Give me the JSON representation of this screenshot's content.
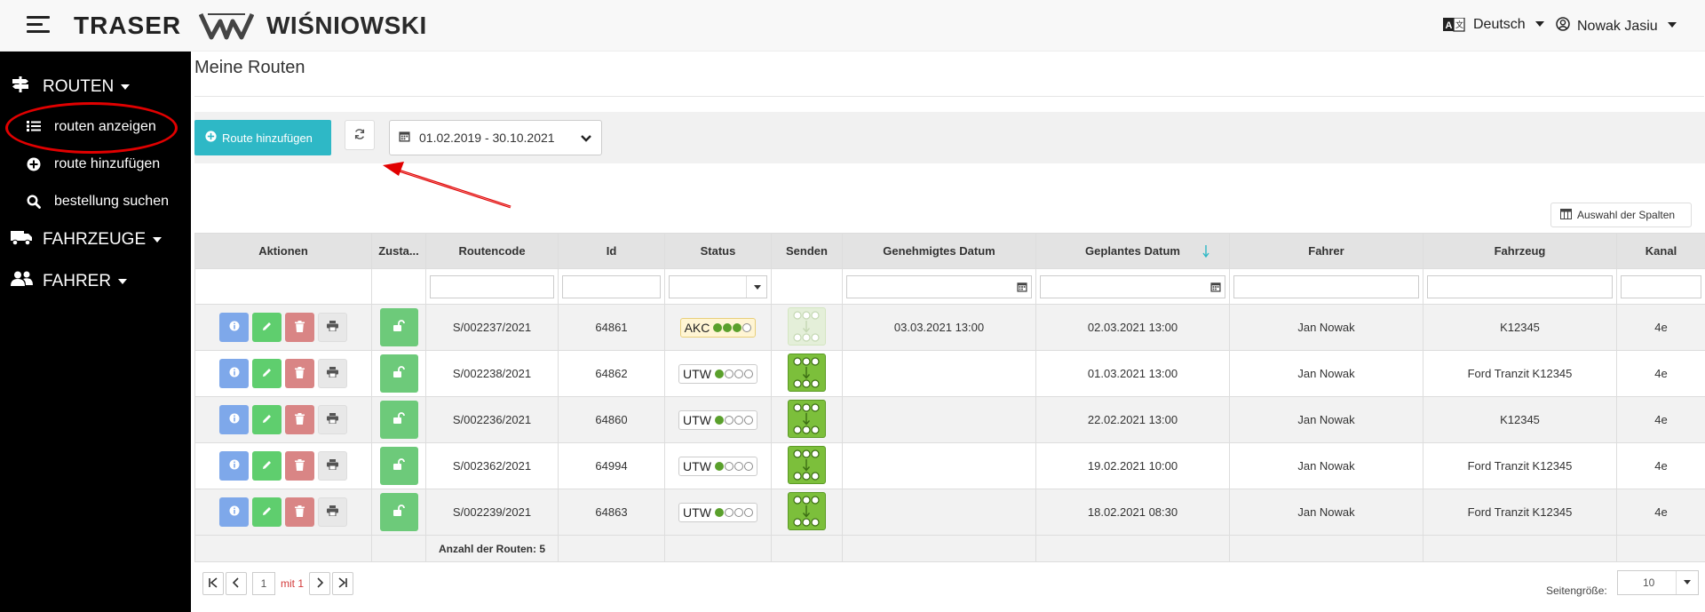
{
  "header": {
    "brand_traser": "TRASER",
    "brand_wisniowski": "WIŚNIOWSKI",
    "language": "Deutsch",
    "user": "Nowak Jasiu"
  },
  "sidebar": {
    "groups": [
      {
        "label": "ROUTEN",
        "icon": "signpost-icon"
      },
      {
        "label": "FAHRZEUGE",
        "icon": "truck-icon"
      },
      {
        "label": "FAHRER",
        "icon": "users-icon"
      }
    ],
    "items": [
      {
        "label": "routen anzeigen",
        "icon": "list-icon"
      },
      {
        "label": "route hinzufügen",
        "icon": "plus-circle-icon"
      },
      {
        "label": "bestellung suchen",
        "icon": "search-icon"
      }
    ]
  },
  "page": {
    "title": "Meine Routen",
    "add_button": "Route hinzufügen",
    "date_range": "01.02.2019 - 30.10.2021",
    "columns_button": "Auswahl der Spalten"
  },
  "table": {
    "headers": [
      "Aktionen",
      "Zusta...",
      "Routencode",
      "Id",
      "Status",
      "Senden",
      "Genehmigtes Datum",
      "Geplantes Datum",
      "Fahrer",
      "Fahrzeug",
      "Kanal"
    ],
    "rows": [
      {
        "code": "S/002237/2021",
        "id": "64861",
        "status": "AKC",
        "status_level": 3,
        "sent": false,
        "approved": "03.03.2021 13:00",
        "planned": "02.03.2021 13:00",
        "driver": "Jan Nowak",
        "vehicle": "K12345",
        "channel": "4e"
      },
      {
        "code": "S/002238/2021",
        "id": "64862",
        "status": "UTW",
        "status_level": 1,
        "sent": true,
        "approved": "",
        "planned": "01.03.2021 13:00",
        "driver": "Jan Nowak",
        "vehicle": "Ford Tranzit K12345",
        "channel": "4e"
      },
      {
        "code": "S/002236/2021",
        "id": "64860",
        "status": "UTW",
        "status_level": 1,
        "sent": true,
        "approved": "",
        "planned": "22.02.2021 13:00",
        "driver": "Jan Nowak",
        "vehicle": "K12345",
        "channel": "4e"
      },
      {
        "code": "S/002362/2021",
        "id": "64994",
        "status": "UTW",
        "status_level": 1,
        "sent": true,
        "approved": "",
        "planned": "19.02.2021 10:00",
        "driver": "Jan Nowak",
        "vehicle": "Ford Tranzit K12345",
        "channel": "4e"
      },
      {
        "code": "S/002239/2021",
        "id": "64863",
        "status": "UTW",
        "status_level": 1,
        "sent": true,
        "approved": "",
        "planned": "18.02.2021 08:30",
        "driver": "Jan Nowak",
        "vehicle": "Ford Tranzit K12345",
        "channel": "4e"
      }
    ],
    "footer": "Anzahl der Routen: 5"
  },
  "pager": {
    "page": "1",
    "of_label": "mit 1",
    "page_size_label": "Seitengröße:",
    "page_size": "10"
  },
  "colors": {
    "accent": "#2eb8c6",
    "sidebar_bg": "#000000",
    "highlight": "#e10000"
  }
}
